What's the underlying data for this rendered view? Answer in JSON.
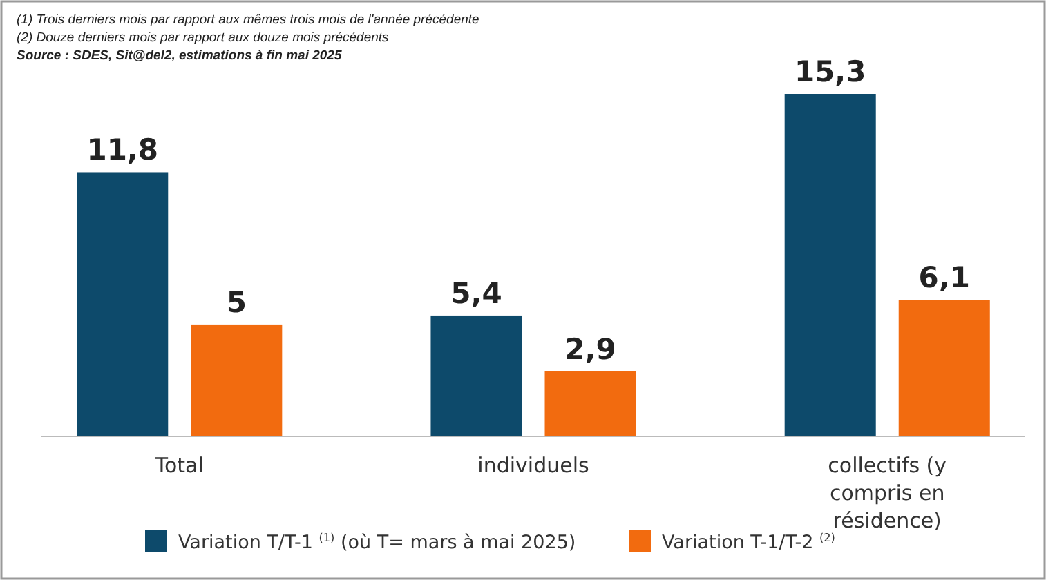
{
  "chart_data": {
    "type": "bar",
    "categories": [
      "Total",
      "individuels",
      "collectifs (y compris en résidence)"
    ],
    "series": [
      {
        "name": "Variation T/T-1 $^{(1)}$ (où T= mars à mai 2025)",
        "color": "#0d4a6b",
        "values": [
          11.8,
          5.4,
          15.3
        ],
        "value_labels": [
          "11,8",
          "5,4",
          "15,3"
        ]
      },
      {
        "name": "Variation T-1/T-2 $^{(2)}$",
        "color": "#f26b0f",
        "values": [
          5,
          2.9,
          6.1
        ],
        "value_labels": [
          "5",
          "2,9",
          "6,1"
        ]
      }
    ],
    "legend": "bottom",
    "annotations": [
      "(1) Trois derniers mois par rapport aux mêmes trois mois de l'année précédente",
      "(2) Douze derniers mois par rapport aux douze mois précédents",
      "Source : SDES, Sit@del2, estimations à fin mai 2025"
    ]
  }
}
